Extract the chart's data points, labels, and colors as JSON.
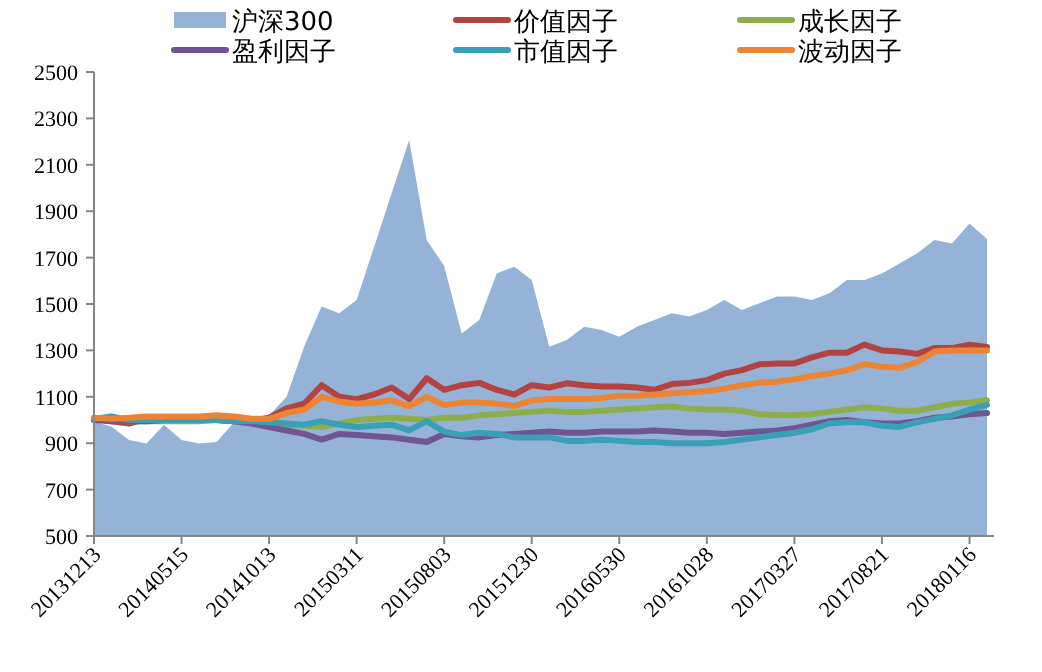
{
  "chart_data": {
    "type": "line",
    "legend": "top",
    "categories": [
      "20131213",
      null,
      null,
      null,
      null,
      "20140515",
      null,
      null,
      null,
      null,
      "20141013",
      null,
      null,
      null,
      null,
      "20150311",
      null,
      null,
      null,
      null,
      "20150803",
      null,
      null,
      null,
      null,
      "20151230",
      null,
      null,
      null,
      null,
      "20160530",
      null,
      null,
      null,
      null,
      "20161028",
      null,
      null,
      null,
      null,
      "20170327",
      null,
      null,
      null,
      null,
      "20170821",
      null,
      null,
      null,
      null,
      "20180116",
      null
    ],
    "ylim": [
      500,
      2500
    ],
    "yticks": [
      500,
      700,
      900,
      1100,
      1300,
      1500,
      1700,
      1900,
      2100,
      2300,
      2500
    ],
    "series": [
      {
        "name": "沪深300",
        "type": "area",
        "color": "#95b3d7",
        "values": [
          994,
          971,
          914,
          899,
          980,
          914,
          899,
          905,
          990,
          985,
          1020,
          1100,
          1316,
          1489,
          1460,
          1517,
          1747,
          1977,
          2207,
          1776,
          1664,
          1373,
          1431,
          1632,
          1661,
          1603,
          1316,
          1345,
          1402,
          1388,
          1359,
          1402,
          1431,
          1460,
          1446,
          1474,
          1517,
          1474,
          1503,
          1532,
          1532,
          1517,
          1546,
          1603,
          1603,
          1632,
          1675,
          1718,
          1776,
          1761,
          1847,
          1780
        ]
      },
      {
        "name": "价值因子",
        "color": "#b24340",
        "values": [
          1005,
          995,
          985,
          1005,
          1010,
          1010,
          1010,
          1015,
          1005,
          995,
          1010,
          1050,
          1070,
          1150,
          1100,
          1090,
          1110,
          1140,
          1090,
          1180,
          1130,
          1150,
          1160,
          1130,
          1110,
          1150,
          1140,
          1158,
          1150,
          1144,
          1144,
          1140,
          1130,
          1155,
          1160,
          1172,
          1200,
          1215,
          1240,
          1244,
          1244,
          1270,
          1290,
          1290,
          1325,
          1300,
          1295,
          1285,
          1310,
          1310,
          1325,
          1315
        ]
      },
      {
        "name": "成长因子",
        "color": "#8eae4e",
        "values": [
          1000,
          1000,
          995,
          995,
          995,
          995,
          995,
          1000,
          995,
          990,
          985,
          980,
          975,
          970,
          985,
          1000,
          1005,
          1010,
          1005,
          1000,
          1010,
          1010,
          1020,
          1025,
          1030,
          1035,
          1040,
          1035,
          1035,
          1040,
          1045,
          1050,
          1055,
          1058,
          1050,
          1045,
          1045,
          1040,
          1025,
          1020,
          1020,
          1025,
          1035,
          1045,
          1055,
          1050,
          1040,
          1040,
          1055,
          1070,
          1075,
          1085
        ]
      },
      {
        "name": "盈利因子",
        "color": "#6f5591",
        "values": [
          1000,
          995,
          995,
          995,
          1000,
          1000,
          1000,
          1000,
          995,
          985,
          970,
          955,
          940,
          915,
          940,
          935,
          930,
          925,
          915,
          905,
          940,
          930,
          925,
          935,
          940,
          945,
          950,
          945,
          945,
          950,
          950,
          950,
          955,
          950,
          945,
          945,
          940,
          945,
          950,
          955,
          965,
          980,
          995,
          1000,
          990,
          985,
          985,
          995,
          1010,
          1015,
          1025,
          1030
        ]
      },
      {
        "name": "市值因子",
        "color": "#3aa0b8",
        "values": [
          1005,
          1015,
          1000,
          1000,
          1000,
          1000,
          1000,
          1000,
          995,
          995,
          990,
          985,
          980,
          995,
          980,
          970,
          975,
          980,
          955,
          995,
          950,
          935,
          945,
          940,
          925,
          925,
          925,
          910,
          910,
          915,
          910,
          905,
          905,
          900,
          900,
          900,
          905,
          915,
          925,
          935,
          945,
          960,
          985,
          990,
          990,
          975,
          970,
          990,
          1005,
          1020,
          1045,
          1065
        ]
      },
      {
        "name": "波动因子",
        "color": "#ec8434",
        "values": [
          1010,
          1005,
          1010,
          1015,
          1015,
          1015,
          1015,
          1020,
          1015,
          1005,
          1005,
          1030,
          1045,
          1100,
          1080,
          1070,
          1075,
          1085,
          1060,
          1100,
          1065,
          1075,
          1075,
          1070,
          1060,
          1085,
          1090,
          1090,
          1090,
          1095,
          1105,
          1105,
          1110,
          1115,
          1120,
          1125,
          1135,
          1150,
          1160,
          1165,
          1175,
          1190,
          1200,
          1215,
          1240,
          1230,
          1225,
          1250,
          1295,
          1300,
          1300,
          1300
        ]
      }
    ]
  }
}
